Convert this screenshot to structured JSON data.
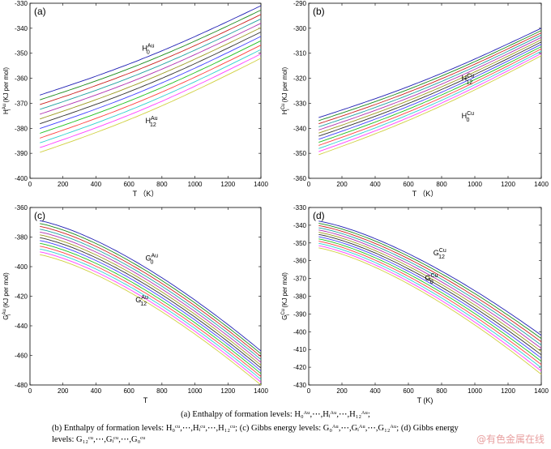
{
  "chart_data": [
    {
      "type": "line",
      "panel_label": "(a)",
      "xlabel": "T （K）",
      "ylabel": "H_i^Au (KJ per mol)",
      "xlim": [
        0,
        1400
      ],
      "ylim": [
        -400,
        -330
      ],
      "xticks": [
        0,
        200,
        400,
        600,
        800,
        1000,
        1200,
        1400
      ],
      "yticks": [
        -400,
        -390,
        -380,
        -370,
        -360,
        -350,
        -340,
        -330
      ],
      "annotations": [
        {
          "base": "H",
          "sub": "0",
          "sup": "Au",
          "x": 680,
          "y": -349
        },
        {
          "base": "H",
          "sub": "12",
          "sup": "Au",
          "x": 700,
          "y": -378
        }
      ],
      "series_range": {
        "n": 13,
        "y0_top": -368,
        "y0_bottom": -391,
        "y1_top": -331,
        "y1_bottom": -352,
        "min_x": 60,
        "shape": "rise"
      }
    },
    {
      "type": "line",
      "panel_label": "(b)",
      "xlabel": "T （K）",
      "ylabel": "H_i^Cu (KJ per mol)",
      "xlim": [
        0,
        1400
      ],
      "ylim": [
        -360,
        -290
      ],
      "xticks": [
        0,
        200,
        400,
        600,
        800,
        1000,
        1200,
        1400
      ],
      "yticks": [
        -360,
        -350,
        -340,
        -330,
        -320,
        -310,
        -300,
        -290
      ],
      "annotations": [
        {
          "base": "H",
          "sub": "12",
          "sup": "Cu",
          "x": 920,
          "y": -321
        },
        {
          "base": "H",
          "sub": "0",
          "sup": "Cu",
          "x": 920,
          "y": -336
        }
      ],
      "series_range": {
        "n": 13,
        "y0_top": -337,
        "y0_bottom": -352,
        "y1_top": -300,
        "y1_bottom": -311,
        "min_x": 60,
        "shape": "rise"
      }
    },
    {
      "type": "line",
      "panel_label": "(c)",
      "xlabel": "T",
      "ylabel": "G_i^Au (KJ per mol)",
      "xlim": [
        0,
        1400
      ],
      "ylim": [
        -480,
        -360
      ],
      "xticks": [
        0,
        200,
        400,
        600,
        800,
        1000,
        1200,
        1400
      ],
      "yticks": [
        -480,
        -460,
        -440,
        -420,
        -400,
        -380,
        -360
      ],
      "annotations": [
        {
          "base": "G",
          "sub": "0",
          "sup": "Au",
          "x": 700,
          "y": -396
        },
        {
          "base": "G",
          "sub": "12",
          "sup": "Au",
          "x": 640,
          "y": -424
        }
      ],
      "series_range": {
        "n": 13,
        "y0_top": -368,
        "y0_bottom": -391,
        "y1_top": -457,
        "y1_bottom": -480,
        "min_x": 60,
        "shape": "fall"
      }
    },
    {
      "type": "line",
      "panel_label": "(d)",
      "xlabel": "T (K)",
      "ylabel": "G_i^Cu (KJ per mol)",
      "xlim": [
        0,
        1400
      ],
      "ylim": [
        -430,
        -330
      ],
      "xticks": [
        0,
        200,
        400,
        600,
        800,
        1000,
        1200,
        1400
      ],
      "yticks": [
        -430,
        -420,
        -410,
        -400,
        -390,
        -380,
        -370,
        -360,
        -350,
        -340,
        -330
      ],
      "annotations": [
        {
          "base": "G",
          "sub": "12",
          "sup": "Cu",
          "x": 750,
          "y": -357
        },
        {
          "base": "G",
          "sub": "0",
          "sup": "Cu",
          "x": 700,
          "y": -371
        }
      ],
      "series_range": {
        "n": 13,
        "y0_top": -337,
        "y0_bottom": -352,
        "y1_top": -402,
        "y1_bottom": -424,
        "min_x": 60,
        "shape": "fall"
      }
    }
  ],
  "series_colors": [
    "#1f1fb4",
    "#1a8a1a",
    "#cc2020",
    "#20a0a0",
    "#b030b0",
    "#9a9a20",
    "#303030",
    "#4040ff",
    "#20c020",
    "#ff4040",
    "#30d0d0",
    "#ff40ff",
    "#d0d040"
  ],
  "caption": {
    "line1": "(a) Enthalpy of formation levels: H₀ᴬᵘ,⋯,Hᵢᴬᵘ,⋯,H₁₂ᴬᵘ;",
    "line2": "(b) Enthalpy of formation levels: H₀ᶜᵘ,⋯,Hᵢᶜᵘ,⋯,H₁₂ᶜᵘ; (c) Gibbs energy levels: G₀ᴬᵘ,⋯,Gᵢᴬᵘ,⋯,G₁₂ᴬᵘ; (d) Gibbs energy",
    "line3": "levels: G₁₂ᶜᵘ,⋯,Gᵢᶜᵘ,⋯,G₀ᶜᵘ"
  },
  "watermark": "@有色金属在线"
}
